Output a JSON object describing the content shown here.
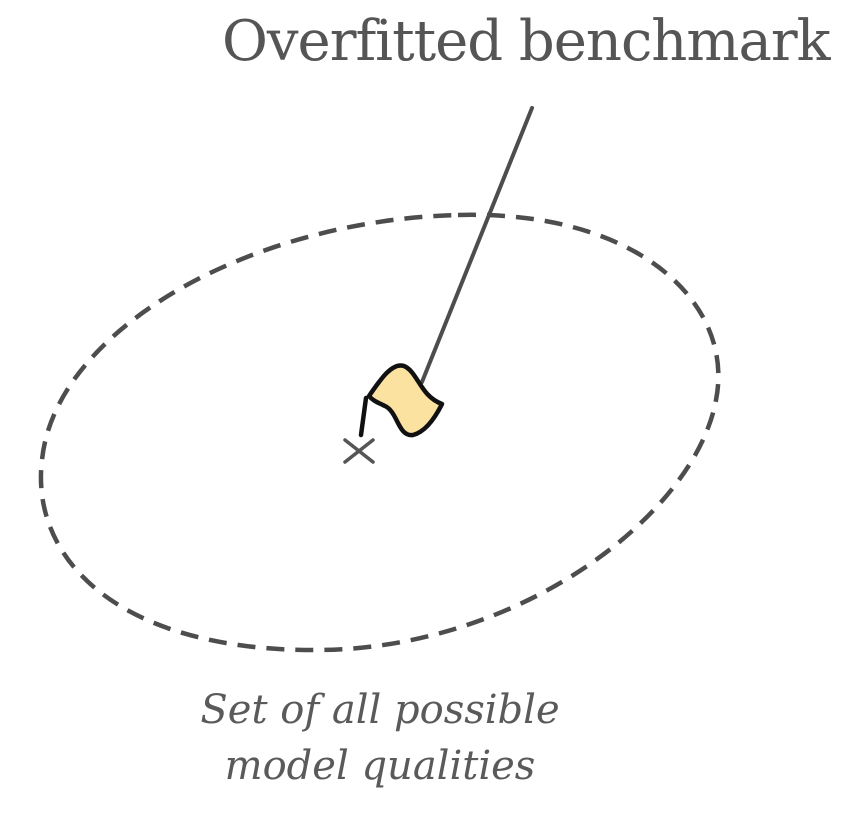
{
  "diagram": {
    "title": "Overfitted benchmark",
    "caption": {
      "line1": "Set of all possible",
      "line2": "model qualities"
    },
    "icons": {
      "flag": "flag-icon",
      "center_marker": "x-mark-icon"
    },
    "colors": {
      "stroke": "#4d4d4d",
      "text": "#555555",
      "flag_fill": "#fbe2a1",
      "flag_outline": "#111111"
    }
  }
}
